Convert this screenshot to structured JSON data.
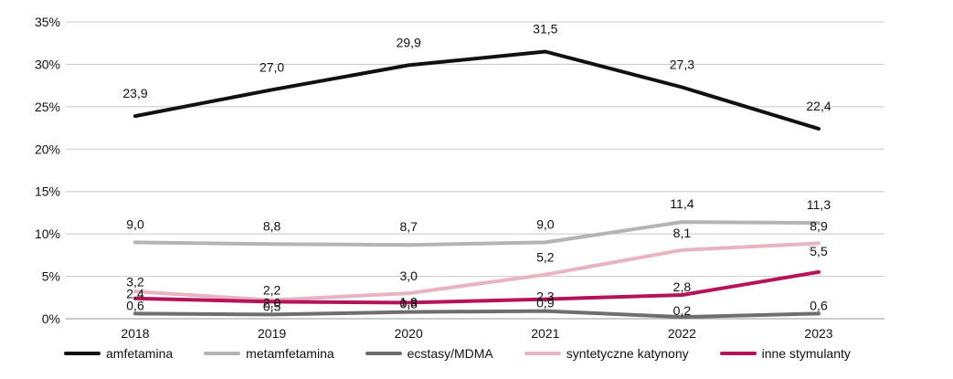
{
  "chart_data": {
    "type": "line",
    "x": [
      "2018",
      "2019",
      "2020",
      "2021",
      "2022",
      "2023"
    ],
    "ylim": [
      0,
      35
    ],
    "yticks": [
      {
        "value": 0,
        "label": "0%"
      },
      {
        "value": 5,
        "label": "5%"
      },
      {
        "value": 10,
        "label": "10%"
      },
      {
        "value": 15,
        "label": "15%"
      },
      {
        "value": 20,
        "label": "20%"
      },
      {
        "value": 25,
        "label": "25%"
      },
      {
        "value": 30,
        "label": "30%"
      },
      {
        "value": 35,
        "label": "35%"
      }
    ],
    "grid": true,
    "legend_position": "bottom",
    "series": [
      {
        "name": "amfetamina",
        "color": "#111111",
        "values": [
          23.9,
          27.0,
          29.9,
          31.5,
          27.3,
          22.4
        ],
        "labels": [
          "23,9",
          "27,0",
          "29,9",
          "31,5",
          "27,3",
          "22,4"
        ]
      },
      {
        "name": "metamfetamina",
        "color": "#b4b4b4",
        "values": [
          9.0,
          8.8,
          8.7,
          9.0,
          11.4,
          11.3
        ],
        "labels": [
          "9,0",
          "8,8",
          "8,7",
          "9,0",
          "11,4",
          "11,3"
        ]
      },
      {
        "name": "ecstasy/MDMA",
        "color": "#6e6e6e",
        "values": [
          0.6,
          0.5,
          0.8,
          0.9,
          0.2,
          0.6
        ],
        "labels": [
          "0,6",
          "0,5",
          "0,8",
          "0,9",
          "0,2",
          "0,6"
        ]
      },
      {
        "name": "syntetyczne katynony",
        "color": "#e8b4c2",
        "values": [
          3.2,
          2.2,
          3.0,
          5.2,
          8.1,
          8.9
        ],
        "labels": [
          "3,2",
          "2,2",
          "3,0",
          "5,2",
          "8,1",
          "8,9"
        ]
      },
      {
        "name": "inne stymulanty",
        "color": "#b5135a",
        "values": [
          2.4,
          2.0,
          1.9,
          2.3,
          2.8,
          5.5
        ],
        "labels": [
          "2,4",
          "2,0",
          "1,9",
          "2,3",
          "2,8",
          "5,5"
        ]
      }
    ]
  }
}
